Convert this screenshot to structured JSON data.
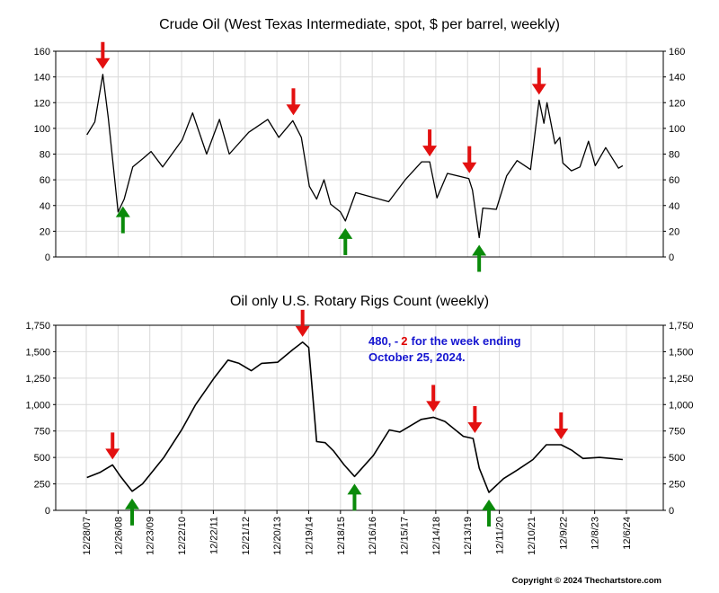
{
  "copyright": "Copyright © 2024 Thechartstore.com",
  "arrow_colors": {
    "peak": "#e31010",
    "trough": "#0a8a0a"
  },
  "x_axis": {
    "ticks": [
      "12/28/07",
      "12/26/08",
      "12/23/09",
      "12/22/10",
      "12/22/11",
      "12/21/12",
      "12/20/13",
      "12/19/14",
      "12/18/15",
      "12/16/16",
      "12/15/17",
      "12/14/18",
      "12/13/19",
      "12/11/20",
      "12/10/21",
      "12/9/22",
      "12/8/23",
      "12/6/24"
    ],
    "range": [
      "2007-12-28",
      "2024-12-06"
    ]
  },
  "chart_data": [
    {
      "type": "line",
      "title": "Crude Oil (West Texas Intermediate, spot, $ per barrel, weekly)",
      "ylim": [
        0,
        160
      ],
      "yticks": [
        "0",
        "20",
        "40",
        "60",
        "80",
        "100",
        "120",
        "140",
        "160"
      ],
      "grid": true,
      "color": "#000000",
      "x": [
        "2008-01-04",
        "2008-04-04",
        "2008-07-04",
        "2008-09-05",
        "2008-12-26",
        "2009-03-06",
        "2009-06-12",
        "2009-10-16",
        "2010-01-08",
        "2010-05-21",
        "2010-12-31",
        "2011-04-29",
        "2011-10-07",
        "2012-03-02",
        "2012-06-22",
        "2013-02-01",
        "2013-09-06",
        "2014-01-10",
        "2014-06-20",
        "2014-09-26",
        "2014-12-26",
        "2015-03-20",
        "2015-06-12",
        "2015-08-28",
        "2015-12-18",
        "2016-02-12",
        "2016-06-10",
        "2017-06-23",
        "2017-12-29",
        "2018-07-06",
        "2018-10-05",
        "2018-12-28",
        "2019-04-26",
        "2019-12-27",
        "2020-02-07",
        "2020-04-24",
        "2020-06-05",
        "2020-11-06",
        "2021-03-05",
        "2021-07-02",
        "2021-12-03",
        "2022-03-11",
        "2022-05-06",
        "2022-06-10",
        "2022-09-09",
        "2022-11-04",
        "2022-12-09",
        "2023-03-17",
        "2023-06-23",
        "2023-09-29",
        "2023-12-15",
        "2024-04-12",
        "2024-09-06",
        "2024-10-25"
      ],
      "values": [
        95,
        105,
        142,
        108,
        35,
        45,
        70,
        77,
        82,
        70,
        91,
        112,
        80,
        107,
        80,
        97,
        107,
        93,
        106,
        93,
        55,
        45,
        60,
        41,
        35,
        28,
        50,
        43,
        60,
        74,
        74,
        46,
        65,
        61,
        52,
        15,
        38,
        37,
        63,
        75,
        68,
        122,
        104,
        120,
        88,
        93,
        73,
        67,
        70,
        90,
        71,
        85,
        69,
        71
      ]
    },
    {
      "type": "line",
      "title": "Oil only U.S. Rotary Rigs Count (weekly)",
      "ylim": [
        0,
        1750
      ],
      "yticks": [
        "0",
        "250",
        "500",
        "750",
        "1,000",
        "1,250",
        "1,500",
        "1,750"
      ],
      "grid": true,
      "color": "#000000",
      "annotation": {
        "value": "480",
        "sep": ", -",
        "change": "2",
        "suffix": "for the week ending",
        "date": "October 25, 2024."
      },
      "x": [
        "2008-01-04",
        "2008-06-06",
        "2008-10-24",
        "2009-01-23",
        "2009-06-05",
        "2009-10-02",
        "2010-06-04",
        "2010-12-31",
        "2011-06-03",
        "2011-12-30",
        "2012-06-08",
        "2012-10-12",
        "2013-03-01",
        "2013-06-28",
        "2013-12-27",
        "2014-06-20",
        "2014-10-10",
        "2014-12-19",
        "2015-03-20",
        "2015-06-26",
        "2015-10-02",
        "2016-01-29",
        "2016-05-27",
        "2016-12-30",
        "2017-06-30",
        "2017-10-27",
        "2018-06-29",
        "2018-11-16",
        "2019-03-29",
        "2019-10-25",
        "2020-02-14",
        "2020-04-24",
        "2020-08-14",
        "2021-01-29",
        "2021-07-02",
        "2021-12-31",
        "2022-06-03",
        "2022-11-18",
        "2023-03-17",
        "2023-07-28",
        "2024-02-02",
        "2024-10-25"
      ],
      "values": [
        310,
        360,
        430,
        320,
        180,
        250,
        500,
        770,
        1000,
        1250,
        1420,
        1390,
        1320,
        1390,
        1400,
        1520,
        1590,
        1540,
        650,
        640,
        560,
        430,
        320,
        520,
        760,
        740,
        860,
        880,
        840,
        700,
        680,
        400,
        170,
        300,
        380,
        480,
        620,
        620,
        570,
        490,
        500,
        480
      ]
    }
  ],
  "arrows": {
    "crude": [
      {
        "kind": "peak",
        "x": "2008-07-04"
      },
      {
        "kind": "trough",
        "x": "2009-02-20"
      },
      {
        "kind": "peak",
        "x": "2014-06-27"
      },
      {
        "kind": "trough",
        "x": "2016-02-12"
      },
      {
        "kind": "peak",
        "x": "2018-10-05"
      },
      {
        "kind": "peak",
        "x": "2020-01-03"
      },
      {
        "kind": "trough",
        "x": "2020-04-24"
      },
      {
        "kind": "peak",
        "x": "2022-03-11"
      }
    ],
    "rigs": [
      {
        "kind": "peak",
        "x": "2008-10-24"
      },
      {
        "kind": "trough",
        "x": "2009-06-05"
      },
      {
        "kind": "peak",
        "x": "2014-10-10"
      },
      {
        "kind": "trough",
        "x": "2016-05-27"
      },
      {
        "kind": "peak",
        "x": "2018-11-16"
      },
      {
        "kind": "peak",
        "x": "2020-03-06"
      },
      {
        "kind": "trough",
        "x": "2020-08-14"
      },
      {
        "kind": "peak",
        "x": "2022-11-18"
      }
    ]
  }
}
